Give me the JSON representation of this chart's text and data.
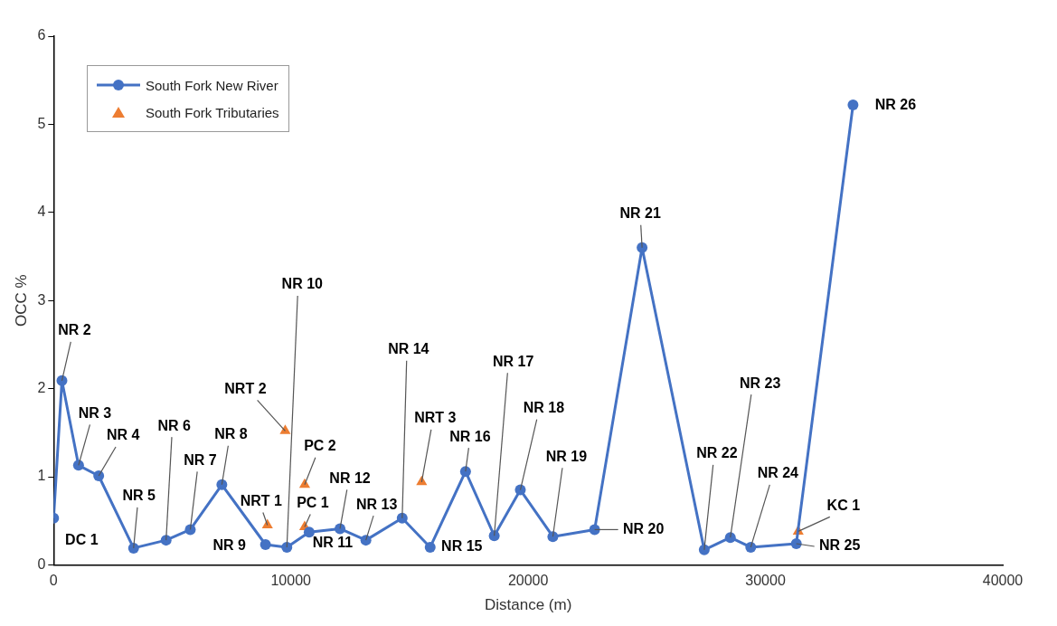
{
  "chart_data": {
    "type": "line",
    "xlabel": "Distance (m)",
    "ylabel": "OCC %",
    "xlim": [
      0,
      40000
    ],
    "xticks": [
      0,
      10000,
      20000,
      30000,
      40000
    ],
    "ylim": [
      0,
      6
    ],
    "yticks": [
      0,
      1,
      2,
      3,
      4,
      5,
      6
    ],
    "grid": false,
    "legend": "top left",
    "line_style": "solid",
    "series": [
      {
        "name": "South Fork New River",
        "type": "line",
        "marker": "circle",
        "color": "#4472c4",
        "x": [
          0,
          350,
          1050,
          1900,
          3370,
          4740,
          5760,
          7090,
          8930,
          9830,
          10770,
          12070,
          13160,
          14690,
          15870,
          17360,
          18570,
          19670,
          21040,
          22800,
          24800,
          27420,
          28520,
          29380,
          31300,
          33690
        ],
        "values": [
          0.53,
          2.09,
          1.13,
          1.01,
          0.19,
          0.28,
          0.4,
          0.91,
          0.23,
          0.2,
          0.37,
          0.41,
          0.28,
          0.53,
          0.2,
          1.06,
          0.33,
          0.85,
          0.32,
          0.4,
          3.6,
          0.17,
          0.31,
          0.2,
          0.24,
          5.22
        ]
      },
      {
        "name": "South Fork Tributaries",
        "type": "scatter",
        "marker": "triangle",
        "color": "#ed7d31",
        "x": [
          9010,
          9760,
          10580,
          10580,
          15510,
          31380
        ],
        "values": [
          0.45,
          1.52,
          0.91,
          0.43,
          0.94,
          0.38
        ]
      }
    ],
    "annotations": [
      {
        "text": "DC 1",
        "x": 0,
        "y": 0.53
      },
      {
        "text": "NR 2",
        "x": 350,
        "y": 2.09
      },
      {
        "text": "NR 3",
        "x": 1050,
        "y": 1.13
      },
      {
        "text": "NR 4",
        "x": 1900,
        "y": 1.01
      },
      {
        "text": "NR 5",
        "x": 3370,
        "y": 0.19
      },
      {
        "text": "NR 6",
        "x": 4740,
        "y": 0.28
      },
      {
        "text": "NR 7",
        "x": 5760,
        "y": 0.4
      },
      {
        "text": "NR 8",
        "x": 7090,
        "y": 0.91
      },
      {
        "text": "NR 9",
        "x": 8930,
        "y": 0.23
      },
      {
        "text": "NR 10",
        "x": 9830,
        "y": 0.2
      },
      {
        "text": "NR 11",
        "x": 10770,
        "y": 0.37
      },
      {
        "text": "NR 12",
        "x": 12070,
        "y": 0.41
      },
      {
        "text": "NR 13",
        "x": 13160,
        "y": 0.28
      },
      {
        "text": "NR 14",
        "x": 14690,
        "y": 0.53
      },
      {
        "text": "NR 15",
        "x": 15870,
        "y": 0.2
      },
      {
        "text": "NR 16",
        "x": 17360,
        "y": 1.06
      },
      {
        "text": "NR 17",
        "x": 18570,
        "y": 0.33
      },
      {
        "text": "NR 18",
        "x": 19670,
        "y": 0.85
      },
      {
        "text": "NR 19",
        "x": 21040,
        "y": 0.32
      },
      {
        "text": "NR 20",
        "x": 22800,
        "y": 0.4
      },
      {
        "text": "NR 21",
        "x": 24800,
        "y": 3.6
      },
      {
        "text": "NR 22",
        "x": 27420,
        "y": 0.17
      },
      {
        "text": "NR 23",
        "x": 28520,
        "y": 0.31
      },
      {
        "text": "NR 24",
        "x": 29380,
        "y": 0.2
      },
      {
        "text": "NR 25",
        "x": 31300,
        "y": 0.24
      },
      {
        "text": "NR 26",
        "x": 33690,
        "y": 5.22
      },
      {
        "text": "NRT 1",
        "x": 9010,
        "y": 0.45
      },
      {
        "text": "NRT 2",
        "x": 9760,
        "y": 1.52
      },
      {
        "text": "PC 2",
        "x": 10580,
        "y": 0.91
      },
      {
        "text": "PC 1",
        "x": 10580,
        "y": 0.43
      },
      {
        "text": "NRT 3",
        "x": 15510,
        "y": 0.94
      },
      {
        "text": "KC 1",
        "x": 31380,
        "y": 0.38
      }
    ]
  }
}
